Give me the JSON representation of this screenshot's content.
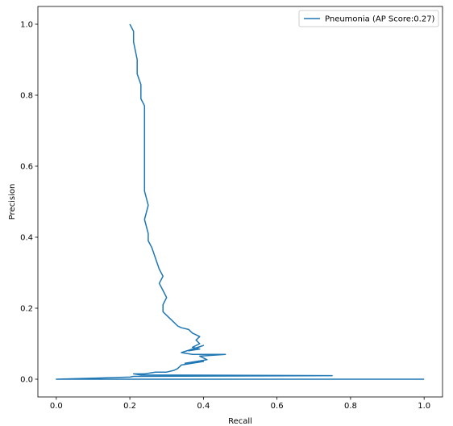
{
  "chart_data": {
    "type": "line",
    "title": "",
    "xlabel": "Recall",
    "ylabel": "Precision",
    "xlim": [
      -0.05,
      1.05
    ],
    "ylim": [
      -0.05,
      1.05
    ],
    "xticks": [
      "0.0",
      "0.2",
      "0.4",
      "0.6",
      "0.8",
      "1.0"
    ],
    "yticks": [
      "0.0",
      "0.2",
      "0.4",
      "0.6",
      "0.8",
      "1.0"
    ],
    "grid": false,
    "legend_position": "top-right",
    "series": [
      {
        "name": "Pneumonia (AP Score:0.27)",
        "color": "#1f77b4",
        "x": [
          0.2,
          0.21,
          0.21,
          0.22,
          0.22,
          0.23,
          0.23,
          0.24,
          0.24,
          0.24,
          0.24,
          0.24,
          0.24,
          0.24,
          0.25,
          0.24,
          0.25,
          0.25,
          0.26,
          0.27,
          0.28,
          0.29,
          0.28,
          0.29,
          0.3,
          0.29,
          0.29,
          0.3,
          0.31,
          0.32,
          0.33,
          0.34,
          0.36,
          0.37,
          0.39,
          0.38,
          0.39,
          0.37,
          0.39,
          0.36,
          0.4,
          0.34,
          0.37,
          0.46,
          0.39,
          0.41,
          0.35,
          0.4,
          0.34,
          0.33,
          0.32,
          0.3,
          0.27,
          0.24,
          0.21,
          0.23,
          0.75,
          0.21,
          0.2,
          0.0,
          1.0
        ],
        "y": [
          1.0,
          0.98,
          0.95,
          0.9,
          0.86,
          0.83,
          0.79,
          0.77,
          0.73,
          0.69,
          0.65,
          0.61,
          0.57,
          0.53,
          0.49,
          0.45,
          0.41,
          0.39,
          0.37,
          0.34,
          0.31,
          0.29,
          0.27,
          0.25,
          0.23,
          0.21,
          0.19,
          0.18,
          0.17,
          0.16,
          0.15,
          0.145,
          0.14,
          0.13,
          0.12,
          0.11,
          0.1,
          0.09,
          0.085,
          0.08,
          0.095,
          0.075,
          0.07,
          0.07,
          0.065,
          0.055,
          0.045,
          0.05,
          0.04,
          0.03,
          0.025,
          0.02,
          0.02,
          0.015,
          0.015,
          0.012,
          0.01,
          0.008,
          0.006,
          0.0,
          0.0
        ]
      }
    ]
  }
}
